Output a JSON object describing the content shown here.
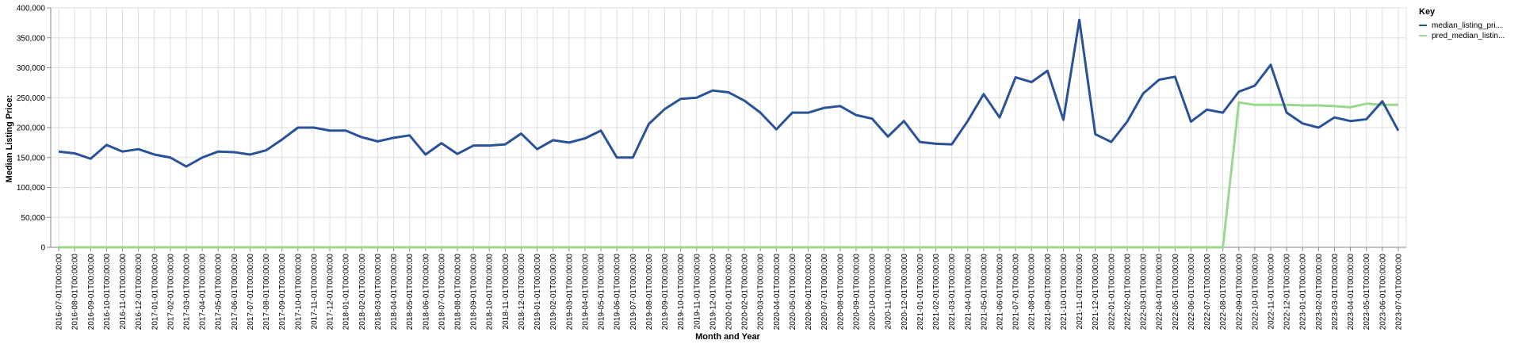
{
  "chart_data": {
    "type": "line",
    "xlabel": "Month and Year",
    "ylabel": "Median Listing Price:",
    "ylim": [
      0,
      400000
    ],
    "yticks": [
      "0",
      "50,000",
      "100,000",
      "150,000",
      "200,000",
      "250,000",
      "300,000",
      "350,000",
      "400,000"
    ],
    "ytick_values": [
      0,
      50000,
      100000,
      150000,
      200000,
      250000,
      300000,
      350000,
      400000
    ],
    "grid": true,
    "legend": {
      "title": "Key",
      "position": "top-right"
    },
    "x": [
      "2016-07-01T00:00:00",
      "2016-08-01T00:00:00",
      "2016-09-01T00:00:00",
      "2016-10-01T00:00:00",
      "2016-11-01T00:00:00",
      "2016-12-01T00:00:00",
      "2017-01-01T00:00:00",
      "2017-02-01T00:00:00",
      "2017-03-01T00:00:00",
      "2017-04-01T00:00:00",
      "2017-05-01T00:00:00",
      "2017-06-01T00:00:00",
      "2017-07-01T00:00:00",
      "2017-08-01T00:00:00",
      "2017-09-01T00:00:00",
      "2017-10-01T00:00:00",
      "2017-11-01T00:00:00",
      "2017-12-01T00:00:00",
      "2018-01-01T00:00:00",
      "2018-02-01T00:00:00",
      "2018-03-01T00:00:00",
      "2018-04-01T00:00:00",
      "2018-05-01T00:00:00",
      "2018-06-01T00:00:00",
      "2018-07-01T00:00:00",
      "2018-08-01T00:00:00",
      "2018-09-01T00:00:00",
      "2018-10-01T00:00:00",
      "2018-11-01T00:00:00",
      "2018-12-01T00:00:00",
      "2019-01-01T00:00:00",
      "2019-02-01T00:00:00",
      "2019-03-01T00:00:00",
      "2019-04-01T00:00:00",
      "2019-05-01T00:00:00",
      "2019-06-01T00:00:00",
      "2019-07-01T00:00:00",
      "2019-08-01T00:00:00",
      "2019-09-01T00:00:00",
      "2019-10-01T00:00:00",
      "2019-11-01T00:00:00",
      "2019-12-01T00:00:00",
      "2020-01-01T00:00:00",
      "2020-02-01T00:00:00",
      "2020-03-01T00:00:00",
      "2020-04-01T00:00:00",
      "2020-05-01T00:00:00",
      "2020-06-01T00:00:00",
      "2020-07-01T00:00:00",
      "2020-08-01T00:00:00",
      "2020-09-01T00:00:00",
      "2020-10-01T00:00:00",
      "2020-11-01T00:00:00",
      "2020-12-01T00:00:00",
      "2021-01-01T00:00:00",
      "2021-02-01T00:00:00",
      "2021-03-01T00:00:00",
      "2021-04-01T00:00:00",
      "2021-05-01T00:00:00",
      "2021-06-01T00:00:00",
      "2021-07-01T00:00:00",
      "2021-08-01T00:00:00",
      "2021-09-01T00:00:00",
      "2021-10-01T00:00:00",
      "2021-11-01T00:00:00",
      "2021-12-01T00:00:00",
      "2022-01-01T00:00:00",
      "2022-02-01T00:00:00",
      "2022-03-01T00:00:00",
      "2022-04-01T00:00:00",
      "2022-05-01T00:00:00",
      "2022-06-01T00:00:00",
      "2022-07-01T00:00:00",
      "2022-08-01T00:00:00",
      "2022-09-01T00:00:00",
      "2022-10-01T00:00:00",
      "2022-11-01T00:00:00",
      "2022-12-01T00:00:00",
      "2023-01-01T00:00:00",
      "2023-02-01T00:00:00",
      "2023-03-01T00:00:00",
      "2023-04-01T00:00:00",
      "2023-05-01T00:00:00",
      "2023-06-01T00:00:00",
      "2023-07-01T00:00:00"
    ],
    "series": [
      {
        "name": "median_listing_pri...",
        "color": "#2a5298",
        "values": [
          160000,
          157000,
          148000,
          171000,
          160000,
          164000,
          155000,
          150000,
          135000,
          150000,
          160000,
          159000,
          155000,
          162000,
          180000,
          200000,
          200000,
          195000,
          195000,
          184000,
          177000,
          183000,
          187000,
          155000,
          174000,
          156000,
          170000,
          170000,
          172000,
          190000,
          164000,
          179000,
          175000,
          182000,
          195000,
          150000,
          150000,
          206000,
          231000,
          248000,
          250000,
          262000,
          259000,
          245000,
          225000,
          197000,
          225000,
          225000,
          233000,
          236000,
          221000,
          215000,
          185000,
          211000,
          176000,
          173000,
          172000,
          211000,
          256000,
          217000,
          284000,
          276000,
          295000,
          213000,
          380000,
          189000,
          176000,
          210000,
          257000,
          280000,
          285000,
          210000,
          230000,
          225000,
          260000,
          270000,
          305000,
          225000,
          207000,
          200000,
          217000,
          211000,
          214000,
          244000,
          195000
        ]
      },
      {
        "name": "pred_median_listin...",
        "color": "#98d98e",
        "values": [
          0,
          0,
          0,
          0,
          0,
          0,
          0,
          0,
          0,
          0,
          0,
          0,
          0,
          0,
          0,
          0,
          0,
          0,
          0,
          0,
          0,
          0,
          0,
          0,
          0,
          0,
          0,
          0,
          0,
          0,
          0,
          0,
          0,
          0,
          0,
          0,
          0,
          0,
          0,
          0,
          0,
          0,
          0,
          0,
          0,
          0,
          0,
          0,
          0,
          0,
          0,
          0,
          0,
          0,
          0,
          0,
          0,
          0,
          0,
          0,
          0,
          0,
          0,
          0,
          0,
          0,
          0,
          0,
          0,
          0,
          0,
          0,
          0,
          0,
          242000,
          238000,
          238000,
          238000,
          237000,
          237000,
          236000,
          234000,
          240000,
          238000,
          238000
        ]
      }
    ]
  }
}
